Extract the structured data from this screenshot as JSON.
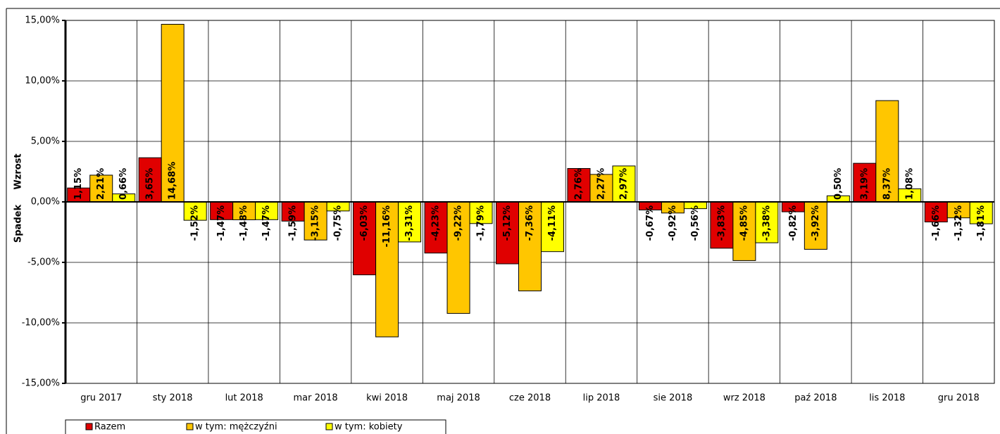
{
  "chart_data": {
    "type": "bar",
    "y_label_up": "Wzrost",
    "y_label_down": "Spadek",
    "categories": [
      "gru 2017",
      "sty 2018",
      "lut 2018",
      "mar 2018",
      "kwi 2018",
      "maj 2018",
      "cze 2018",
      "lip 2018",
      "sie 2018",
      "wrz 2018",
      "paź 2018",
      "lis 2018",
      "gru 2018"
    ],
    "series": [
      {
        "name": "Razem",
        "color": "#e00000",
        "values": [
          1.15,
          3.65,
          -1.47,
          -1.59,
          -6.03,
          -4.23,
          -5.12,
          2.76,
          -0.67,
          -3.83,
          -0.82,
          3.19,
          -1.66
        ],
        "value_labels": [
          "1,15%",
          "3,65%",
          "-1,47%",
          "-1,59%",
          "-6,03%",
          "-4,23%",
          "-5,12%",
          "2,76%",
          "-0,67%",
          "-3,83%",
          "-0,82%",
          "3,19%",
          "-1,66%"
        ]
      },
      {
        "name": "w tym: mężczyźni",
        "color": "#ffc600",
        "values": [
          2.21,
          14.68,
          -1.48,
          -3.15,
          -11.16,
          -9.22,
          -7.36,
          2.27,
          -0.92,
          -4.85,
          -3.92,
          8.37,
          -1.32
        ],
        "value_labels": [
          "2,21%",
          "14,68%",
          "-1,48%",
          "-3,15%",
          "-11,16%",
          "-9,22%",
          "-7,36%",
          "2,27%",
          "-0,92%",
          "-4,85%",
          "-3,92%",
          "8,37%",
          "-1,32%"
        ]
      },
      {
        "name": "w tym: kobiety",
        "color": "#ffff00",
        "values": [
          0.66,
          -1.52,
          -1.47,
          -0.75,
          -3.31,
          -1.79,
          -4.11,
          2.97,
          -0.56,
          -3.38,
          0.5,
          1.08,
          -1.81
        ],
        "value_labels": [
          "0,66%",
          "-1,52%",
          "-1,47%",
          "-0,75%",
          "-3,31%",
          "-1,79%",
          "-4,11%",
          "2,97%",
          "-0,56%",
          "-3,38%",
          "0,50%",
          "1,08%",
          "-1,81%"
        ]
      }
    ],
    "ylim": [
      -15,
      15
    ],
    "yticks": [
      {
        "value": -15,
        "label": "-15,00%"
      },
      {
        "value": -10,
        "label": "-10,00%"
      },
      {
        "value": -5,
        "label": "-5,00%"
      },
      {
        "value": 0,
        "label": "0,00%"
      },
      {
        "value": 5,
        "label": "5,00%"
      },
      {
        "value": 10,
        "label": "10,00%"
      },
      {
        "value": 15,
        "label": "15,00%"
      }
    ],
    "grid": true,
    "legend": "bottom"
  }
}
